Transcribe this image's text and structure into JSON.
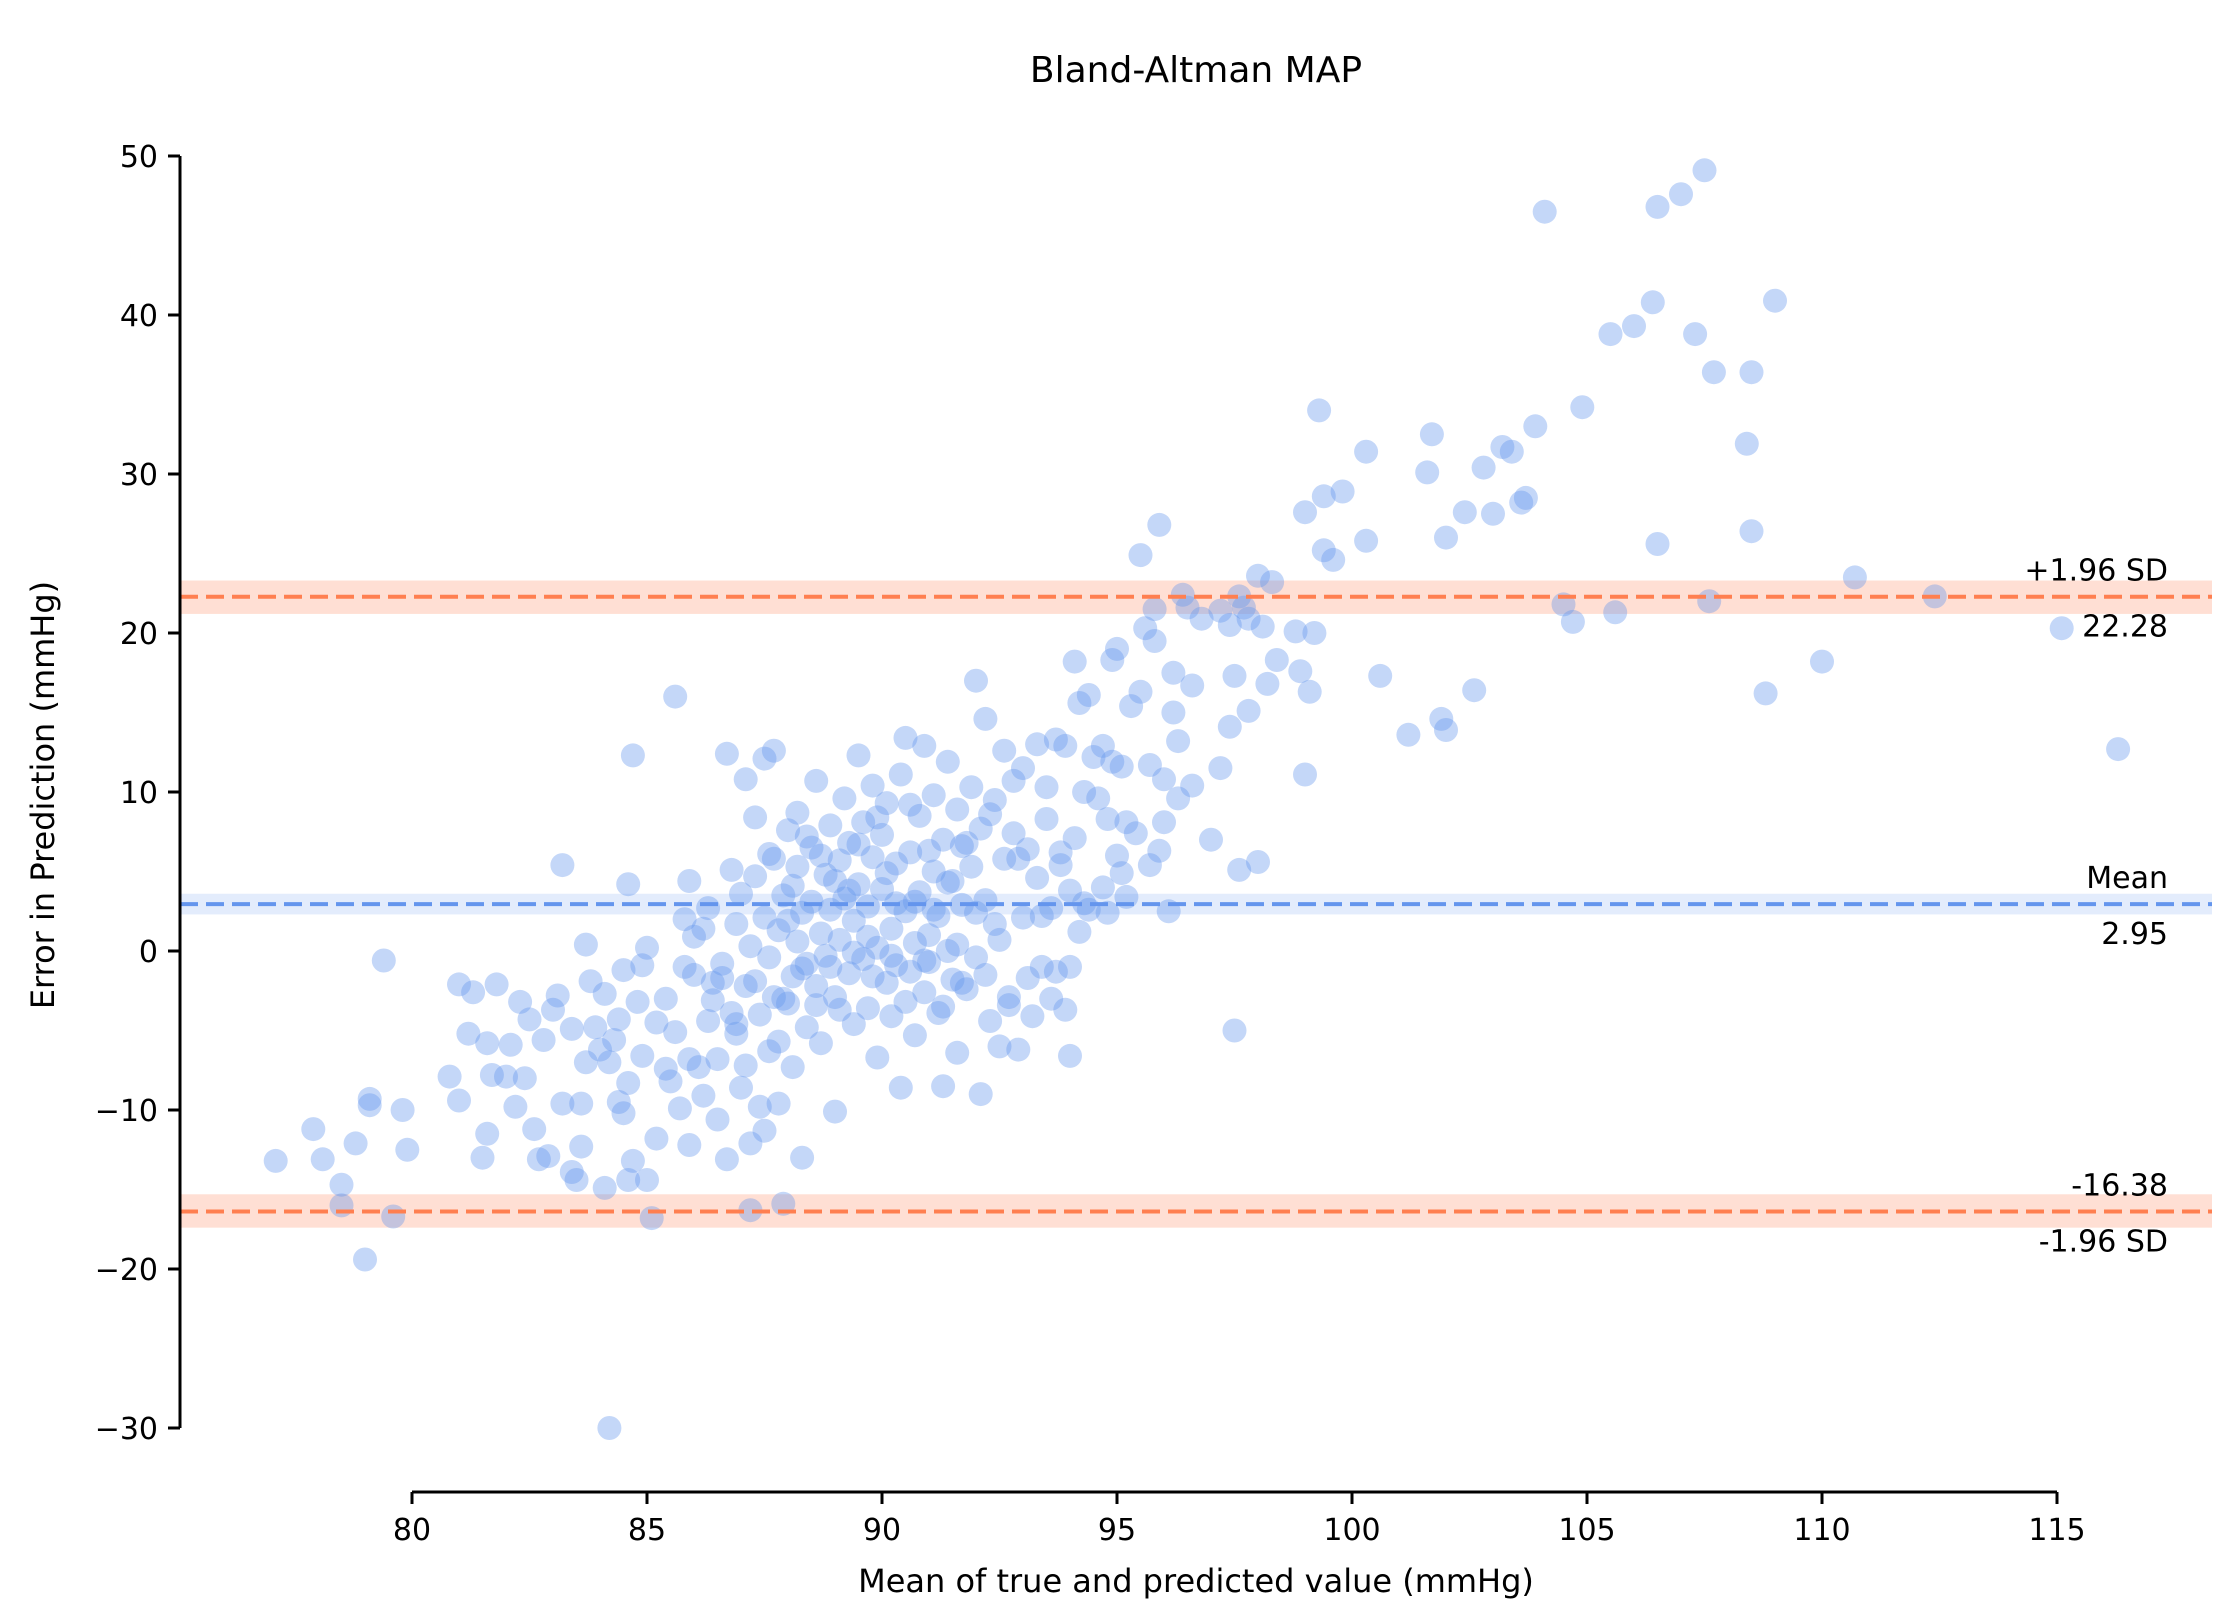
{
  "chart_data": {
    "type": "scatter",
    "title": "Bland-Altman MAP",
    "xlabel": "Mean of true and predicted value (mmHg)",
    "ylabel": "Error in Prediction (mmHg)",
    "xlim": [
      75,
      118
    ],
    "ylim": [
      -30,
      50
    ],
    "x_ticks": [
      80,
      85,
      90,
      95,
      100,
      105,
      110,
      115
    ],
    "y_ticks": [
      -30,
      -20,
      -10,
      0,
      10,
      20,
      30,
      40,
      50
    ],
    "y_tick_labels": [
      "−30",
      "−20",
      "−10",
      "0",
      "10",
      "20",
      "30",
      "40",
      "50"
    ],
    "grid": false,
    "colors": {
      "points": "#6495ed",
      "mean_line": "#6495ed",
      "sd_line": "#ff7f50",
      "band": "#ffdccf"
    },
    "lines": [
      {
        "label": "+1.96 SD",
        "value_label": "22.28",
        "value": 22.28,
        "kind": "sd",
        "ci": [
          21.2,
          23.3
        ]
      },
      {
        "label": "Mean",
        "value_label": "2.95",
        "value": 2.95,
        "kind": "mean",
        "ci": [
          2.3,
          3.6
        ]
      },
      {
        "label": "-1.96 SD",
        "value_label": "-16.38",
        "value": -16.38,
        "kind": "sd",
        "ci": [
          -17.4,
          -15.3
        ]
      }
    ],
    "points": [
      [
        77.1,
        -13.2
      ],
      [
        77.9,
        -11.2
      ],
      [
        78.1,
        -13.1
      ],
      [
        78.5,
        -14.7
      ],
      [
        78.5,
        -16.0
      ],
      [
        78.8,
        -12.1
      ],
      [
        79.0,
        -19.4
      ],
      [
        79.1,
        -9.3
      ],
      [
        79.1,
        -9.7
      ],
      [
        79.4,
        -0.6
      ],
      [
        79.6,
        -16.7
      ],
      [
        79.8,
        -10.0
      ],
      [
        79.9,
        -12.5
      ],
      [
        80.8,
        -7.9
      ],
      [
        81.0,
        -9.4
      ],
      [
        81.0,
        -2.1
      ],
      [
        81.2,
        -5.2
      ],
      [
        81.3,
        -2.6
      ],
      [
        81.5,
        -13.0
      ],
      [
        81.6,
        -11.5
      ],
      [
        81.6,
        -5.8
      ],
      [
        81.7,
        -7.8
      ],
      [
        81.8,
        -2.1
      ],
      [
        82.0,
        -7.9
      ],
      [
        82.1,
        -5.9
      ],
      [
        82.2,
        -9.8
      ],
      [
        82.3,
        -3.2
      ],
      [
        82.4,
        -8.0
      ],
      [
        82.5,
        -4.3
      ],
      [
        82.6,
        -11.2
      ],
      [
        82.7,
        -13.1
      ],
      [
        82.8,
        -5.6
      ],
      [
        82.9,
        -12.9
      ],
      [
        83.0,
        -3.7
      ],
      [
        83.1,
        -2.8
      ],
      [
        83.2,
        -9.6
      ],
      [
        83.2,
        5.4
      ],
      [
        83.4,
        -13.9
      ],
      [
        83.4,
        -4.9
      ],
      [
        83.5,
        -14.4
      ],
      [
        83.6,
        -9.6
      ],
      [
        83.6,
        -12.3
      ],
      [
        83.7,
        -7.0
      ],
      [
        83.7,
        0.4
      ],
      [
        83.8,
        -1.9
      ],
      [
        83.9,
        -4.8
      ],
      [
        84.0,
        -6.2
      ],
      [
        84.1,
        -2.7
      ],
      [
        84.1,
        -14.9
      ],
      [
        84.2,
        -7.0
      ],
      [
        84.2,
        -30.0
      ],
      [
        84.3,
        -5.6
      ],
      [
        84.4,
        -4.3
      ],
      [
        84.4,
        -9.5
      ],
      [
        84.5,
        -1.2
      ],
      [
        84.5,
        -10.2
      ],
      [
        84.6,
        -8.3
      ],
      [
        84.6,
        4.2
      ],
      [
        84.6,
        -14.4
      ],
      [
        84.7,
        12.3
      ],
      [
        84.7,
        -13.2
      ],
      [
        84.8,
        -3.2
      ],
      [
        84.9,
        -0.9
      ],
      [
        84.9,
        -6.6
      ],
      [
        85.0,
        0.2
      ],
      [
        85.0,
        -14.4
      ],
      [
        85.1,
        -16.8
      ],
      [
        85.2,
        -4.5
      ],
      [
        85.2,
        -11.8
      ],
      [
        85.4,
        -3.0
      ],
      [
        85.4,
        -7.4
      ],
      [
        85.5,
        -8.2
      ],
      [
        85.6,
        -5.1
      ],
      [
        85.6,
        16.0
      ],
      [
        85.7,
        -9.9
      ],
      [
        85.8,
        -1.0
      ],
      [
        85.8,
        2.0
      ],
      [
        85.9,
        -12.2
      ],
      [
        85.9,
        -6.8
      ],
      [
        85.9,
        4.4
      ],
      [
        86.0,
        -1.5
      ],
      [
        86.0,
        0.9
      ],
      [
        86.1,
        -7.3
      ],
      [
        86.2,
        -9.1
      ],
      [
        86.3,
        -4.4
      ],
      [
        86.3,
        2.7
      ],
      [
        86.4,
        -2.0
      ],
      [
        86.5,
        -10.6
      ],
      [
        86.5,
        -6.8
      ],
      [
        86.6,
        -0.8
      ],
      [
        86.7,
        -13.1
      ],
      [
        86.7,
        12.4
      ],
      [
        86.8,
        -3.9
      ],
      [
        86.8,
        5.1
      ],
      [
        86.9,
        -5.2
      ],
      [
        86.9,
        1.7
      ],
      [
        87.0,
        -8.6
      ],
      [
        87.0,
        3.6
      ],
      [
        87.1,
        -7.2
      ],
      [
        87.1,
        10.8
      ],
      [
        87.2,
        -16.3
      ],
      [
        87.2,
        -12.1
      ],
      [
        87.2,
        0.3
      ],
      [
        87.3,
        -1.9
      ],
      [
        87.3,
        8.4
      ],
      [
        87.4,
        -9.8
      ],
      [
        87.4,
        -4.0
      ],
      [
        87.5,
        12.1
      ],
      [
        87.5,
        -11.3
      ],
      [
        87.5,
        2.1
      ],
      [
        87.6,
        -0.4
      ],
      [
        87.6,
        6.1
      ],
      [
        87.7,
        -2.9
      ],
      [
        87.7,
        12.6
      ],
      [
        87.8,
        -5.7
      ],
      [
        87.8,
        1.3
      ],
      [
        87.8,
        -9.6
      ],
      [
        87.9,
        3.5
      ],
      [
        87.9,
        -15.9
      ],
      [
        88.0,
        -3.3
      ],
      [
        88.0,
        7.6
      ],
      [
        88.1,
        -1.6
      ],
      [
        88.1,
        -7.3
      ],
      [
        88.2,
        0.6
      ],
      [
        88.2,
        5.3
      ],
      [
        88.2,
        8.7
      ],
      [
        88.3,
        -13.0
      ],
      [
        88.3,
        2.4
      ],
      [
        88.4,
        -4.8
      ],
      [
        88.4,
        -0.8
      ],
      [
        88.5,
        6.5
      ],
      [
        88.5,
        3.1
      ],
      [
        88.6,
        -2.2
      ],
      [
        88.6,
        10.7
      ],
      [
        88.7,
        1.1
      ],
      [
        88.7,
        -5.8
      ],
      [
        88.8,
        4.8
      ],
      [
        88.8,
        -0.3
      ],
      [
        88.9,
        7.9
      ],
      [
        88.9,
        2.6
      ],
      [
        89.0,
        -10.1
      ],
      [
        89.0,
        -2.9
      ],
      [
        89.1,
        0.7
      ],
      [
        89.1,
        5.7
      ],
      [
        89.2,
        9.6
      ],
      [
        89.2,
        3.3
      ],
      [
        89.3,
        -1.4
      ],
      [
        89.3,
        6.8
      ],
      [
        89.4,
        -4.6
      ],
      [
        89.4,
        1.9
      ],
      [
        89.5,
        12.3
      ],
      [
        89.5,
        4.2
      ],
      [
        89.6,
        -0.5
      ],
      [
        89.6,
        8.1
      ],
      [
        89.7,
        -3.6
      ],
      [
        89.7,
        2.8
      ],
      [
        89.8,
        10.4
      ],
      [
        89.8,
        5.9
      ],
      [
        89.9,
        -6.7
      ],
      [
        89.9,
        0.2
      ],
      [
        90.0,
        3.9
      ],
      [
        90.0,
        7.3
      ],
      [
        90.1,
        -2.0
      ],
      [
        90.1,
        9.3
      ],
      [
        90.2,
        1.4
      ],
      [
        90.2,
        -4.1
      ],
      [
        90.3,
        5.5
      ],
      [
        90.3,
        -0.9
      ],
      [
        90.4,
        11.1
      ],
      [
        90.4,
        -8.6
      ],
      [
        90.5,
        2.5
      ],
      [
        90.5,
        13.4
      ],
      [
        90.6,
        -1.3
      ],
      [
        90.6,
        6.2
      ],
      [
        90.7,
        0.5
      ],
      [
        90.7,
        -5.3
      ],
      [
        90.8,
        8.5
      ],
      [
        90.8,
        3.7
      ],
      [
        90.9,
        -2.6
      ],
      [
        90.9,
        12.9
      ],
      [
        91.0,
        1.0
      ],
      [
        91.0,
        -0.7
      ],
      [
        91.1,
        5.0
      ],
      [
        91.1,
        9.8
      ],
      [
        91.2,
        -3.9
      ],
      [
        91.2,
        2.2
      ],
      [
        91.3,
        7.0
      ],
      [
        91.3,
        -8.5
      ],
      [
        91.4,
        11.9
      ],
      [
        91.4,
        0.0
      ],
      [
        91.5,
        4.4
      ],
      [
        91.5,
        -1.8
      ],
      [
        91.6,
        8.9
      ],
      [
        91.6,
        -6.4
      ],
      [
        91.7,
        2.9
      ],
      [
        91.7,
        6.6
      ],
      [
        91.8,
        -2.4
      ],
      [
        91.9,
        10.3
      ],
      [
        91.9,
        5.3
      ],
      [
        92.0,
        -0.4
      ],
      [
        92.0,
        17.0
      ],
      [
        92.1,
        7.7
      ],
      [
        92.1,
        -9.0
      ],
      [
        92.2,
        3.2
      ],
      [
        92.2,
        14.6
      ],
      [
        92.3,
        -4.4
      ],
      [
        92.4,
        9.5
      ],
      [
        92.4,
        1.7
      ],
      [
        92.5,
        -6.0
      ],
      [
        92.6,
        12.6
      ],
      [
        92.6,
        5.8
      ],
      [
        92.7,
        -2.9
      ],
      [
        92.8,
        7.4
      ],
      [
        92.8,
        10.7
      ],
      [
        92.9,
        -6.2
      ],
      [
        93.0,
        2.1
      ],
      [
        93.0,
        11.5
      ],
      [
        93.1,
        6.4
      ],
      [
        93.2,
        -4.1
      ],
      [
        93.3,
        13.0
      ],
      [
        93.3,
        4.6
      ],
      [
        93.4,
        -1.0
      ],
      [
        93.5,
        8.3
      ],
      [
        93.5,
        10.3
      ],
      [
        93.6,
        2.7
      ],
      [
        93.7,
        -1.3
      ],
      [
        93.7,
        13.3
      ],
      [
        93.8,
        5.4
      ],
      [
        93.9,
        -3.7
      ],
      [
        93.9,
        12.9
      ],
      [
        94.0,
        3.8
      ],
      [
        94.0,
        -6.6
      ],
      [
        94.1,
        7.1
      ],
      [
        94.1,
        18.2
      ],
      [
        94.2,
        1.2
      ],
      [
        94.2,
        15.6
      ],
      [
        94.3,
        10.0
      ],
      [
        94.4,
        2.6
      ],
      [
        94.4,
        16.1
      ],
      [
        94.5,
        12.2
      ],
      [
        94.6,
        9.6
      ],
      [
        94.7,
        4.0
      ],
      [
        94.7,
        12.9
      ],
      [
        94.8,
        8.3
      ],
      [
        94.8,
        2.4
      ],
      [
        94.9,
        18.3
      ],
      [
        94.9,
        11.9
      ],
      [
        95.0,
        19.0
      ],
      [
        95.0,
        6.0
      ],
      [
        95.1,
        4.9
      ],
      [
        95.1,
        11.6
      ],
      [
        95.2,
        8.1
      ],
      [
        95.2,
        3.4
      ],
      [
        95.3,
        15.4
      ],
      [
        95.4,
        7.4
      ],
      [
        95.5,
        16.3
      ],
      [
        95.5,
        24.9
      ],
      [
        95.6,
        20.3
      ],
      [
        95.7,
        5.4
      ],
      [
        95.7,
        11.7
      ],
      [
        95.8,
        21.5
      ],
      [
        95.8,
        19.5
      ],
      [
        95.9,
        6.3
      ],
      [
        95.9,
        26.8
      ],
      [
        96.0,
        10.8
      ],
      [
        96.0,
        8.1
      ],
      [
        96.1,
        2.5
      ],
      [
        96.2,
        17.5
      ],
      [
        96.2,
        15.0
      ],
      [
        96.3,
        13.2
      ],
      [
        96.3,
        9.6
      ],
      [
        96.4,
        22.4
      ],
      [
        96.5,
        21.6
      ],
      [
        96.6,
        16.7
      ],
      [
        96.6,
        10.4
      ],
      [
        96.8,
        20.9
      ],
      [
        97.0,
        7.0
      ],
      [
        97.2,
        21.4
      ],
      [
        97.2,
        11.5
      ],
      [
        97.4,
        20.5
      ],
      [
        97.4,
        14.1
      ],
      [
        97.5,
        17.3
      ],
      [
        97.5,
        -5.0
      ],
      [
        97.6,
        22.3
      ],
      [
        97.6,
        5.1
      ],
      [
        97.7,
        21.6
      ],
      [
        97.8,
        15.1
      ],
      [
        97.8,
        20.9
      ],
      [
        98.0,
        5.6
      ],
      [
        98.0,
        23.6
      ],
      [
        98.1,
        20.4
      ],
      [
        98.2,
        16.8
      ],
      [
        98.3,
        23.2
      ],
      [
        98.4,
        18.3
      ],
      [
        98.8,
        20.1
      ],
      [
        98.9,
        17.6
      ],
      [
        99.0,
        11.1
      ],
      [
        99.0,
        27.6
      ],
      [
        99.1,
        16.3
      ],
      [
        99.2,
        20.0
      ],
      [
        99.3,
        34.0
      ],
      [
        99.4,
        28.6
      ],
      [
        99.4,
        25.2
      ],
      [
        99.6,
        24.6
      ],
      [
        99.8,
        28.9
      ],
      [
        100.3,
        25.8
      ],
      [
        100.3,
        31.4
      ],
      [
        100.6,
        17.3
      ],
      [
        101.2,
        13.6
      ],
      [
        101.6,
        30.1
      ],
      [
        101.7,
        32.5
      ],
      [
        101.9,
        14.6
      ],
      [
        102.0,
        13.9
      ],
      [
        102.0,
        26.0
      ],
      [
        102.4,
        27.6
      ],
      [
        102.6,
        16.4
      ],
      [
        102.8,
        30.4
      ],
      [
        103.0,
        27.5
      ],
      [
        103.2,
        31.7
      ],
      [
        103.4,
        31.4
      ],
      [
        103.6,
        28.2
      ],
      [
        103.7,
        28.5
      ],
      [
        103.9,
        33.0
      ],
      [
        104.1,
        46.5
      ],
      [
        104.5,
        21.8
      ],
      [
        104.7,
        20.7
      ],
      [
        104.9,
        34.2
      ],
      [
        105.5,
        38.8
      ],
      [
        105.6,
        21.3
      ],
      [
        106.0,
        39.3
      ],
      [
        106.4,
        40.8
      ],
      [
        106.5,
        25.6
      ],
      [
        106.5,
        46.8
      ],
      [
        107.0,
        47.6
      ],
      [
        107.3,
        38.8
      ],
      [
        107.5,
        49.1
      ],
      [
        107.6,
        22.0
      ],
      [
        107.7,
        36.4
      ],
      [
        108.4,
        31.9
      ],
      [
        108.5,
        26.4
      ],
      [
        108.5,
        36.4
      ],
      [
        108.8,
        16.2
      ],
      [
        109.0,
        40.9
      ],
      [
        110.0,
        18.2
      ],
      [
        110.7,
        23.5
      ],
      [
        112.4,
        22.3
      ],
      [
        115.1,
        20.3
      ],
      [
        116.3,
        12.7
      ],
      [
        86.2,
        1.4
      ],
      [
        86.4,
        -3.1
      ],
      [
        86.6,
        -1.7
      ],
      [
        86.9,
        -4.6
      ],
      [
        87.1,
        -2.2
      ],
      [
        87.3,
        4.7
      ],
      [
        87.6,
        -6.3
      ],
      [
        87.7,
        5.8
      ],
      [
        87.9,
        -3.0
      ],
      [
        88.0,
        1.9
      ],
      [
        88.1,
        4.1
      ],
      [
        88.3,
        -1.1
      ],
      [
        88.4,
        7.2
      ],
      [
        88.6,
        -3.4
      ],
      [
        88.7,
        6.0
      ],
      [
        88.9,
        -1.0
      ],
      [
        89.0,
        4.4
      ],
      [
        89.1,
        -3.7
      ],
      [
        89.3,
        3.8
      ],
      [
        89.4,
        -0.1
      ],
      [
        89.5,
        6.7
      ],
      [
        89.7,
        0.9
      ],
      [
        89.8,
        -1.6
      ],
      [
        89.9,
        8.4
      ],
      [
        90.1,
        4.9
      ],
      [
        90.2,
        -0.3
      ],
      [
        90.3,
        3.0
      ],
      [
        90.5,
        -3.2
      ],
      [
        90.6,
        9.2
      ],
      [
        90.7,
        3.1
      ],
      [
        90.9,
        -0.6
      ],
      [
        91.0,
        6.3
      ],
      [
        91.1,
        2.6
      ],
      [
        91.3,
        -3.5
      ],
      [
        91.4,
        4.3
      ],
      [
        91.6,
        0.4
      ],
      [
        91.7,
        -2.0
      ],
      [
        91.8,
        6.8
      ],
      [
        92.0,
        2.4
      ],
      [
        92.2,
        -1.5
      ],
      [
        92.3,
        8.6
      ],
      [
        92.5,
        0.7
      ],
      [
        92.7,
        -3.4
      ],
      [
        92.9,
        5.8
      ],
      [
        93.1,
        -1.7
      ],
      [
        93.4,
        2.2
      ],
      [
        93.6,
        -3.0
      ],
      [
        93.8,
        6.2
      ],
      [
        94.0,
        -1.0
      ],
      [
        94.3,
        3.0
      ]
    ]
  }
}
